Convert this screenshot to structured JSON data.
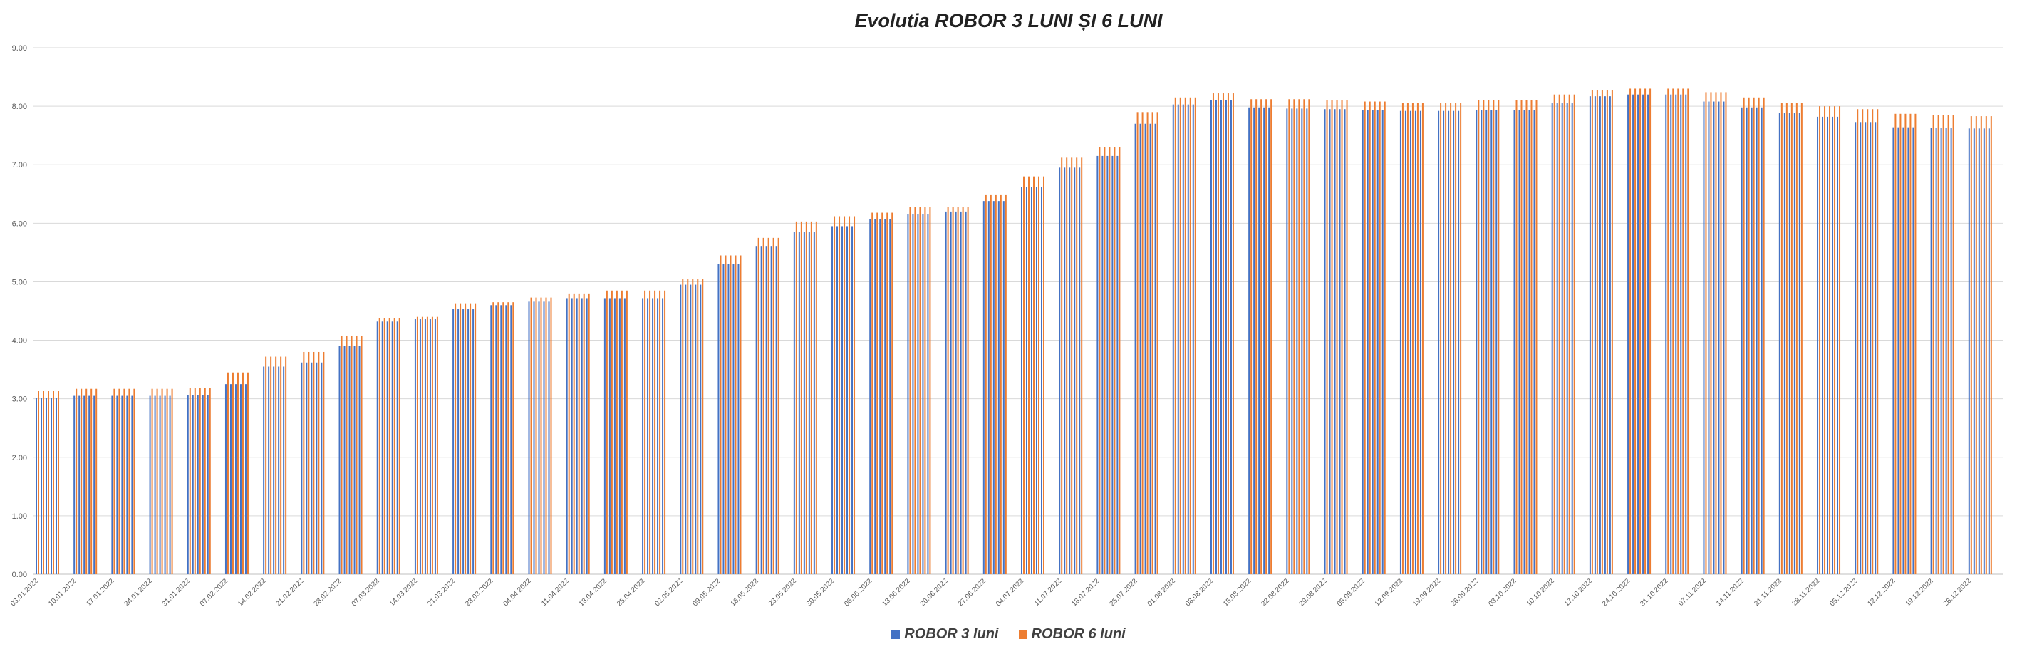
{
  "chart_data": {
    "type": "bar",
    "title": "Evolutia  ROBOR 3 LUNI ȘI 6 LUNI",
    "xlabel": "",
    "ylabel": "",
    "ylim": [
      0,
      9
    ],
    "yticks": [
      "0.00",
      "1.00",
      "2.00",
      "3.00",
      "4.00",
      "5.00",
      "6.00",
      "7.00",
      "8.00",
      "9.00"
    ],
    "grid": true,
    "legend_position": "bottom",
    "x_labels": [
      "03.01.2022",
      "10.01.2022",
      "17.01.2022",
      "24.01.2022",
      "31.01.2022",
      "07.02.2022",
      "14.02.2022",
      "21.02.2022",
      "28.02.2022",
      "07.03.2022",
      "14.03.2022",
      "21.03.2022",
      "28.03.2022",
      "04.04.2022",
      "11.04.2022",
      "18.04.2022",
      "25.04.2022",
      "02.05.2022",
      "09.05.2022",
      "16.05.2022",
      "23.05.2022",
      "30.05.2022",
      "06.06.2022",
      "13.06.2022",
      "20.06.2022",
      "27.06.2022",
      "04.07.2022",
      "11.07.2022",
      "18.07.2022",
      "25.07.2022",
      "01.08.2022",
      "08.08.2022",
      "15.08.2022",
      "22.08.2022",
      "29.08.2022",
      "05.09.2022",
      "12.09.2022",
      "19.09.2022",
      "26.09.2022",
      "03.10.2022",
      "10.10.2022",
      "17.10.2022",
      "24.10.2022",
      "31.10.2022",
      "07.11.2022",
      "14.11.2022",
      "21.11.2022",
      "28.11.2022",
      "05.12.2022",
      "12.12.2022",
      "19.12.2022",
      "26.12.2022"
    ],
    "weekly_series": [
      {
        "name": "ROBOR 3 luni",
        "color": "#4472C4",
        "values": [
          3.01,
          3.05,
          3.05,
          3.05,
          3.06,
          3.25,
          3.55,
          3.62,
          3.9,
          4.32,
          4.36,
          4.53,
          4.6,
          4.66,
          4.72,
          4.72,
          4.72,
          4.95,
          5.3,
          5.6,
          5.85,
          5.95,
          6.07,
          6.15,
          6.2,
          6.38,
          6.62,
          6.95,
          7.15,
          7.7,
          8.03,
          8.1,
          7.98,
          7.96,
          7.95,
          7.93,
          7.92,
          7.92,
          7.93,
          7.93,
          8.05,
          8.17,
          8.2,
          8.2,
          8.08,
          7.98,
          7.88,
          7.82,
          7.73,
          7.64,
          7.63,
          7.62
        ]
      },
      {
        "name": "ROBOR 6 luni",
        "color": "#ED7D31",
        "values": [
          3.13,
          3.17,
          3.17,
          3.17,
          3.18,
          3.45,
          3.72,
          3.8,
          4.08,
          4.38,
          4.4,
          4.62,
          4.65,
          4.73,
          4.8,
          4.85,
          4.85,
          5.05,
          5.45,
          5.75,
          6.03,
          6.12,
          6.18,
          6.28,
          6.28,
          6.48,
          6.8,
          7.12,
          7.3,
          7.9,
          8.15,
          8.22,
          8.12,
          8.12,
          8.1,
          8.08,
          8.06,
          8.06,
          8.1,
          8.1,
          8.2,
          8.27,
          8.3,
          8.3,
          8.24,
          8.15,
          8.06,
          8.0,
          7.95,
          7.87,
          7.85,
          7.83
        ]
      }
    ]
  },
  "legend": {
    "series1": {
      "label": "ROBOR 3 luni",
      "color": "#4472C4"
    },
    "series2": {
      "label": "ROBOR 6 luni",
      "color": "#ED7D31"
    }
  }
}
